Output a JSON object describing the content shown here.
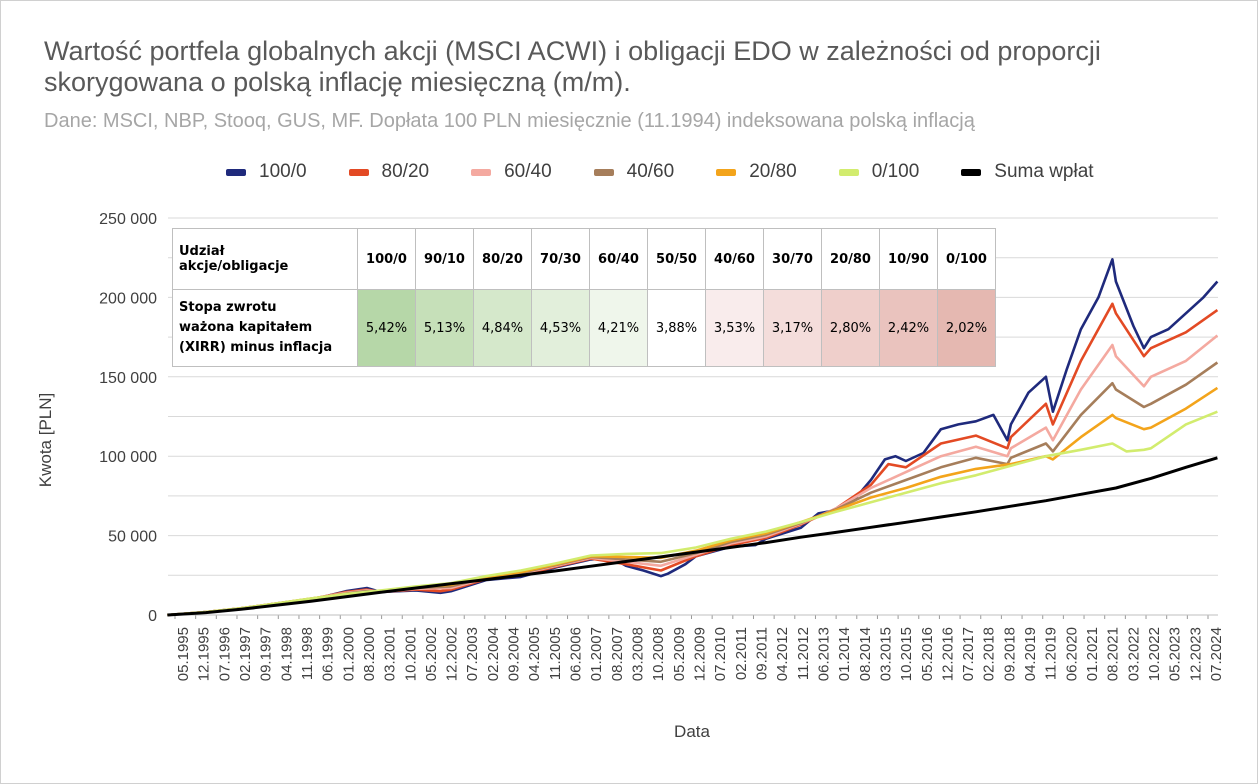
{
  "title": "Wartość portfela globalnych akcji (MSCI ACWI) i obligacji EDO w zależności od proporcji skorygowana o polską inflację miesięczną (m/m).",
  "subtitle": "Dane: MSCI, NBP, Stooq, GUS, MF. Dopłata 100 PLN miesięcznie (11.1994) indeksowana polską inflacją",
  "legend": [
    {
      "label": "100/0",
      "color": "#1f2a7c"
    },
    {
      "label": "80/20",
      "color": "#e34a24"
    },
    {
      "label": "60/40",
      "color": "#f4a9a0"
    },
    {
      "label": "40/60",
      "color": "#a67e5b"
    },
    {
      "label": "20/80",
      "color": "#f3a41b"
    },
    {
      "label": "0/100",
      "color": "#d2ec6e"
    },
    {
      "label": "Suma wpłat",
      "color": "#000000"
    }
  ],
  "table": {
    "header_label_line1": "Udział",
    "header_label_line2": "akcje/obligacje",
    "row_label_line1": "Stopa zwrotu",
    "row_label_line2": "ważona kapitałem",
    "row_label_line3": "(XIRR) minus inflacja",
    "columns": [
      "100/0",
      "90/10",
      "80/20",
      "70/30",
      "60/40",
      "50/50",
      "40/60",
      "30/70",
      "20/80",
      "10/90",
      "0/100"
    ],
    "values": [
      "5,42%",
      "5,13%",
      "4,84%",
      "4,53%",
      "4,21%",
      "3,88%",
      "3,53%",
      "3,17%",
      "2,80%",
      "2,42%",
      "2,02%"
    ],
    "cell_colors": [
      "#b6d7a8",
      "#c6e0b9",
      "#d5e8cb",
      "#e2efdb",
      "#eff6eb",
      "#ffffff",
      "#f9ecec",
      "#f4dddb",
      "#efcfcb",
      "#eac3be",
      "#e5b8b1"
    ]
  },
  "chart_data": {
    "type": "line",
    "title": "Wartość portfela globalnych akcji (MSCI ACWI) i obligacji EDO w zależności od proporcji skorygowana o polską inflację miesięczną (m/m).",
    "xlabel": "Data",
    "ylabel": "Kwota [PLN]",
    "ylim": [
      0,
      250000
    ],
    "yticks": [
      0,
      50000,
      100000,
      150000,
      200000,
      250000
    ],
    "ytick_labels": [
      "0",
      "50 000",
      "100 000",
      "150 000",
      "200 000",
      "250 000"
    ],
    "xlim": [
      1994.917,
      2024.917
    ],
    "xticks": [
      "05.1995",
      "12.1995",
      "07.1996",
      "02.1997",
      "09.1997",
      "04.1998",
      "11.1998",
      "06.1999",
      "01.2000",
      "08.2000",
      "03.2001",
      "10.2001",
      "05.2002",
      "12.2002",
      "07.2003",
      "02.2004",
      "09.2004",
      "04.2005",
      "11.2005",
      "06.2006",
      "01.2007",
      "08.2007",
      "03.2008",
      "10.2008",
      "05.2009",
      "12.2009",
      "07.2010",
      "02.2011",
      "09.2011",
      "04.2012",
      "11.2012",
      "06.2013",
      "01.2014",
      "08.2014",
      "03.2015",
      "10.2015",
      "05.2016",
      "12.2016",
      "07.2017",
      "02.2018",
      "09.2018",
      "04.2019",
      "11.2019",
      "06.2020",
      "01.2021",
      "08.2021",
      "03.2022",
      "10.2022",
      "05.2023",
      "12.2023",
      "07.2024"
    ],
    "series": [
      {
        "name": "100/0",
        "color": "#1f2a7c",
        "x": [
          1994.9,
          1996.0,
          1997.0,
          1998.0,
          1998.6,
          1999.0,
          2000.0,
          2000.6,
          2001.0,
          2001.5,
          2002.0,
          2002.7,
          2003.0,
          2004.0,
          2005.0,
          2006.0,
          2007.0,
          2007.6,
          2008.0,
          2008.5,
          2009.0,
          2009.2,
          2009.7,
          2010.0,
          2011.0,
          2011.7,
          2012.0,
          2013.0,
          2013.5,
          2014.0,
          2014.5,
          2015.0,
          2015.4,
          2015.7,
          2016.0,
          2016.5,
          2017.0,
          2017.5,
          2018.0,
          2018.5,
          2018.9,
          2019.0,
          2019.5,
          2020.0,
          2020.2,
          2020.6,
          2021.0,
          2021.5,
          2021.9,
          2022.0,
          2022.5,
          2022.8,
          2023.0,
          2023.5,
          2024.0,
          2024.5,
          2024.9
        ],
        "y": [
          0,
          1800,
          4000,
          7000,
          8000,
          9500,
          15000,
          17000,
          14500,
          15000,
          15500,
          14000,
          15000,
          22000,
          24000,
          30000,
          35000,
          36000,
          31000,
          28000,
          24500,
          26000,
          32000,
          37000,
          43000,
          44000,
          48000,
          55000,
          64000,
          66000,
          72000,
          85000,
          98000,
          100000,
          97000,
          102000,
          117000,
          120000,
          122000,
          126000,
          110000,
          120000,
          140000,
          150000,
          128000,
          155000,
          180000,
          200000,
          224000,
          210000,
          182000,
          168000,
          175000,
          180000,
          190000,
          200000,
          210000
        ]
      },
      {
        "name": "80/20",
        "color": "#e34a24",
        "x": [
          1994.9,
          1996.0,
          1997.0,
          1998.0,
          1999.0,
          2000.0,
          2000.6,
          2001.0,
          2002.0,
          2002.7,
          2003.0,
          2004.0,
          2005.0,
          2006.0,
          2007.0,
          2008.0,
          2009.0,
          2010.0,
          2011.0,
          2012.0,
          2013.0,
          2014.0,
          2015.0,
          2015.5,
          2016.0,
          2017.0,
          2018.0,
          2018.9,
          2019.0,
          2020.0,
          2020.2,
          2021.0,
          2021.9,
          2022.0,
          2022.8,
          2023.0,
          2024.0,
          2024.9
        ],
        "y": [
          0,
          1800,
          4200,
          7200,
          10000,
          14500,
          16000,
          14500,
          16000,
          15000,
          16000,
          22500,
          25000,
          30500,
          35500,
          32000,
          28000,
          37000,
          44000,
          48500,
          57000,
          67000,
          82000,
          95000,
          93000,
          108000,
          113000,
          105000,
          112000,
          133000,
          120000,
          160000,
          196000,
          190000,
          163000,
          168000,
          178000,
          192000
        ]
      },
      {
        "name": "60/40",
        "color": "#f4a9a0",
        "x": [
          1994.9,
          1996.0,
          1997.0,
          1998.0,
          1999.0,
          2000.0,
          2000.6,
          2001.0,
          2002.0,
          2003.0,
          2004.0,
          2005.0,
          2006.0,
          2007.0,
          2008.0,
          2009.0,
          2010.0,
          2011.0,
          2012.0,
          2013.0,
          2014.0,
          2015.0,
          2016.0,
          2017.0,
          2018.0,
          2018.9,
          2019.0,
          2020.0,
          2020.2,
          2021.0,
          2021.9,
          2022.0,
          2022.8,
          2023.0,
          2024.0,
          2024.9
        ],
        "y": [
          0,
          1800,
          4200,
          7200,
          10200,
          14000,
          15500,
          14500,
          16500,
          17000,
          23000,
          26000,
          31000,
          36000,
          33500,
          31000,
          38000,
          45000,
          49500,
          57500,
          67000,
          80000,
          90000,
          100000,
          106000,
          100000,
          105000,
          118000,
          110000,
          142000,
          170000,
          163000,
          144000,
          150000,
          160000,
          176000
        ]
      },
      {
        "name": "40/60",
        "color": "#a67e5b",
        "x": [
          1994.9,
          1996.0,
          1997.0,
          1998.0,
          1999.0,
          2000.0,
          2000.6,
          2001.0,
          2002.0,
          2003.0,
          2004.0,
          2005.0,
          2006.0,
          2007.0,
          2008.0,
          2009.0,
          2010.0,
          2011.0,
          2012.0,
          2013.0,
          2014.0,
          2015.0,
          2016.0,
          2017.0,
          2018.0,
          2018.9,
          2019.0,
          2020.0,
          2020.2,
          2021.0,
          2021.9,
          2022.0,
          2022.8,
          2023.0,
          2024.0,
          2024.9
        ],
        "y": [
          0,
          1800,
          4200,
          7200,
          10300,
          13500,
          15000,
          14500,
          17000,
          18000,
          23500,
          26500,
          31500,
          36500,
          35000,
          33500,
          39000,
          46000,
          50500,
          58000,
          66500,
          77000,
          85000,
          93000,
          99000,
          95000,
          99000,
          108000,
          103000,
          126000,
          146000,
          142000,
          131000,
          133000,
          145000,
          159000
        ]
      },
      {
        "name": "20/80",
        "color": "#f3a41b",
        "x": [
          1994.9,
          1996.0,
          1997.0,
          1998.0,
          1999.0,
          2000.0,
          2001.0,
          2002.0,
          2003.0,
          2004.0,
          2005.0,
          2006.0,
          2007.0,
          2008.0,
          2009.0,
          2010.0,
          2011.0,
          2012.0,
          2013.0,
          2014.0,
          2015.0,
          2016.0,
          2017.0,
          2018.0,
          2019.0,
          2020.0,
          2020.2,
          2021.0,
          2021.9,
          2022.0,
          2022.8,
          2023.0,
          2024.0,
          2024.9
        ],
        "y": [
          0,
          1800,
          4200,
          7200,
          10400,
          13300,
          15000,
          17500,
          19000,
          24000,
          27000,
          32000,
          37000,
          36500,
          36000,
          40500,
          47000,
          51500,
          58500,
          66000,
          74000,
          80000,
          87000,
          92000,
          95000,
          100000,
          98000,
          112000,
          126000,
          124000,
          117000,
          118000,
          130000,
          143000
        ]
      },
      {
        "name": "0/100",
        "color": "#d2ec6e",
        "x": [
          1994.9,
          1996.0,
          1997.0,
          1998.0,
          1999.0,
          2000.0,
          2001.0,
          2002.0,
          2003.0,
          2004.0,
          2005.0,
          2006.0,
          2007.0,
          2008.0,
          2009.0,
          2010.0,
          2011.0,
          2012.0,
          2013.0,
          2014.0,
          2015.0,
          2016.0,
          2017.0,
          2018.0,
          2019.0,
          2020.0,
          2021.0,
          2021.9,
          2022.3,
          2022.8,
          2023.0,
          2024.0,
          2024.9
        ],
        "y": [
          0,
          1800,
          4200,
          7200,
          10400,
          13200,
          15500,
          18000,
          20000,
          24500,
          28000,
          32500,
          37500,
          38500,
          39000,
          42500,
          48000,
          52500,
          58500,
          65000,
          71000,
          77000,
          83000,
          88000,
          94000,
          100000,
          104000,
          108000,
          103000,
          104000,
          105000,
          120000,
          128000
        ]
      },
      {
        "name": "Suma wpłat",
        "color": "#000000",
        "x": [
          1994.9,
          1996.0,
          1997.0,
          1998.0,
          1999.0,
          2000.0,
          2001.0,
          2002.0,
          2003.0,
          2004.0,
          2005.0,
          2006.0,
          2007.0,
          2008.0,
          2009.0,
          2010.0,
          2011.0,
          2012.0,
          2013.0,
          2014.0,
          2015.0,
          2016.0,
          2017.0,
          2018.0,
          2019.0,
          2020.0,
          2021.0,
          2022.0,
          2023.0,
          2024.0,
          2024.9
        ],
        "y": [
          0,
          1500,
          3600,
          6100,
          8700,
          11500,
          14300,
          17000,
          19700,
          22300,
          25000,
          27800,
          30700,
          33700,
          36600,
          39600,
          42600,
          45600,
          49000,
          52000,
          55200,
          58400,
          61700,
          65000,
          68500,
          72000,
          76000,
          80000,
          86000,
          93000,
          99000
        ]
      }
    ]
  }
}
